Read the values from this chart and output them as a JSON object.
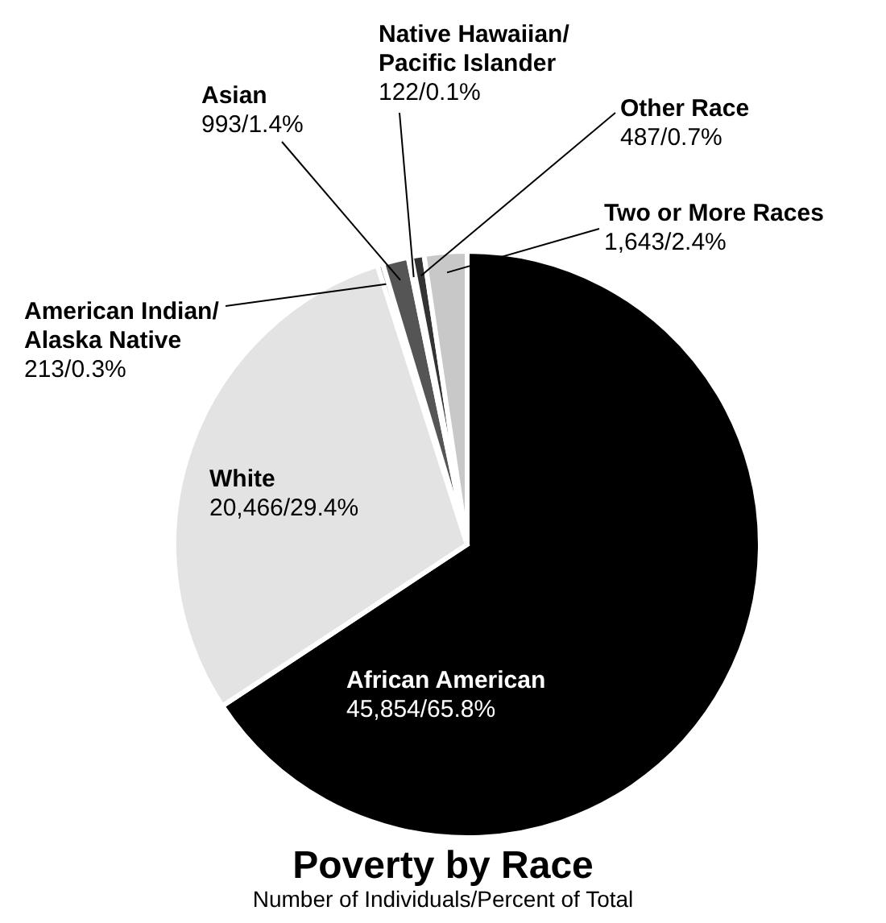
{
  "chart_data": {
    "type": "pie",
    "title": "Poverty by Race",
    "subtitle": "Number of Individuals/Percent of Total",
    "categories": [
      "African American",
      "White",
      "American Indian/Alaska Native",
      "Asian",
      "Native Hawaiian/Pacific Islander",
      "Other Race",
      "Two or More Races"
    ],
    "values": [
      45854,
      20466,
      213,
      993,
      122,
      487,
      1643
    ],
    "value_labels": [
      "45,854/65.8%",
      "20,466/29.4%",
      "213/0.3%",
      "993/1.4%",
      "122/0.1%",
      "487/0.7%",
      "1,643/2.4%"
    ],
    "colors": [
      "#000000",
      "#e3e3e3",
      "#9a9a9a",
      "#555555",
      "#bdbdbd",
      "#333333",
      "#c8c8c8"
    ],
    "legend": false
  }
}
